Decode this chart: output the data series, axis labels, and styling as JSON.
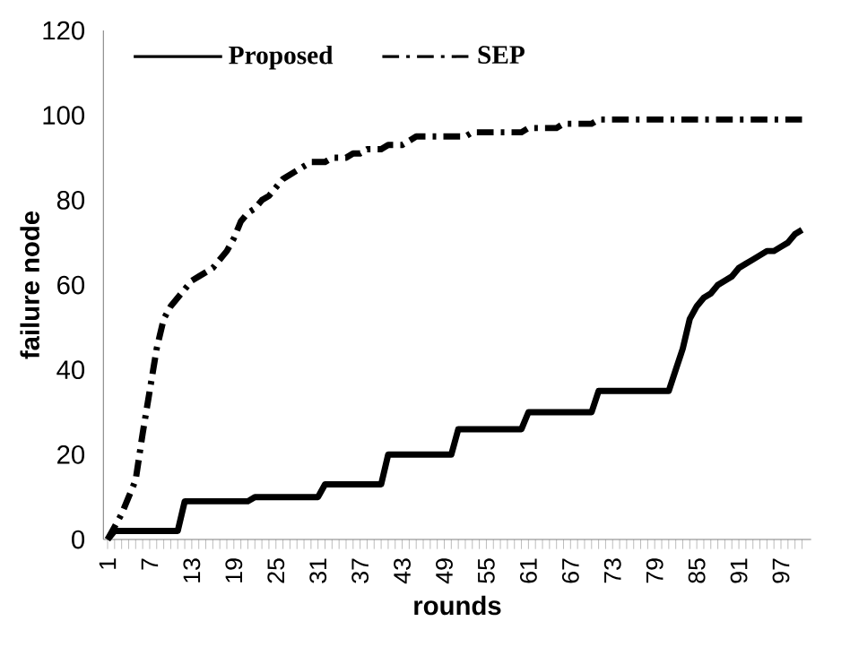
{
  "chart_data": {
    "type": "line",
    "xlabel": "rounds",
    "ylabel": "failure node",
    "categories": [
      "1",
      null,
      null,
      null,
      null,
      null,
      "7",
      null,
      null,
      null,
      null,
      null,
      "13",
      null,
      null,
      null,
      null,
      null,
      "19",
      null,
      null,
      null,
      null,
      null,
      "25",
      null,
      null,
      null,
      null,
      null,
      "31",
      null,
      null,
      null,
      null,
      null,
      "37",
      null,
      null,
      null,
      null,
      null,
      "43",
      null,
      null,
      null,
      null,
      null,
      "49",
      null,
      null,
      null,
      null,
      null,
      "55",
      null,
      null,
      null,
      null,
      null,
      "61",
      null,
      null,
      null,
      null,
      null,
      "67",
      null,
      null,
      null,
      null,
      null,
      "73",
      null,
      null,
      null,
      null,
      null,
      "79",
      null,
      null,
      null,
      null,
      null,
      "85",
      null,
      null,
      null,
      null,
      null,
      "91",
      null,
      null,
      null,
      null,
      null,
      "97",
      null,
      null,
      null
    ],
    "series": [
      {
        "name": "Proposed",
        "color": "#000000",
        "line_style": "solid",
        "values": [
          0,
          2,
          2,
          2,
          2,
          2,
          2,
          2,
          2,
          2,
          2,
          9,
          9,
          9,
          9,
          9,
          9,
          9,
          9,
          9,
          9,
          10,
          10,
          10,
          10,
          10,
          10,
          10,
          10,
          10,
          10,
          13,
          13,
          13,
          13,
          13,
          13,
          13,
          13,
          13,
          20,
          20,
          20,
          20,
          20,
          20,
          20,
          20,
          20,
          20,
          26,
          26,
          26,
          26,
          26,
          26,
          26,
          26,
          26,
          26,
          30,
          30,
          30,
          30,
          30,
          30,
          30,
          30,
          30,
          30,
          35,
          35,
          35,
          35,
          35,
          35,
          35,
          35,
          35,
          35,
          35,
          40,
          45,
          52,
          55,
          57,
          58,
          60,
          61,
          62,
          64,
          65,
          66,
          67,
          68,
          68,
          69,
          70,
          72,
          73
        ]
      },
      {
        "name": "SEP",
        "color": "#000000",
        "line_style": "dashed",
        "values": [
          0,
          3,
          6,
          10,
          14,
          25,
          35,
          45,
          52,
          55,
          57,
          59,
          61,
          62,
          63,
          64,
          66,
          68,
          71,
          75,
          77,
          78,
          80,
          81,
          83,
          85,
          86,
          87,
          88,
          89,
          89,
          89,
          90,
          90,
          90,
          91,
          91,
          92,
          92,
          92,
          93,
          93,
          93,
          94,
          95,
          95,
          95,
          95,
          95,
          95,
          95,
          95,
          96,
          96,
          96,
          96,
          96,
          96,
          96,
          96,
          97,
          97,
          97,
          97,
          97,
          98,
          98,
          98,
          98,
          98,
          99,
          99,
          99,
          99,
          99,
          99,
          99,
          99,
          99,
          99,
          99,
          99,
          99,
          99,
          99,
          99,
          99,
          99,
          99,
          99,
          99,
          99,
          99,
          99,
          99,
          99,
          99,
          99,
          99,
          99
        ]
      }
    ],
    "ylim": [
      0,
      120
    ],
    "yticks": [
      0,
      20,
      40,
      60,
      80,
      100,
      120
    ],
    "grid": false,
    "legend": "top left",
    "marker": "none"
  }
}
